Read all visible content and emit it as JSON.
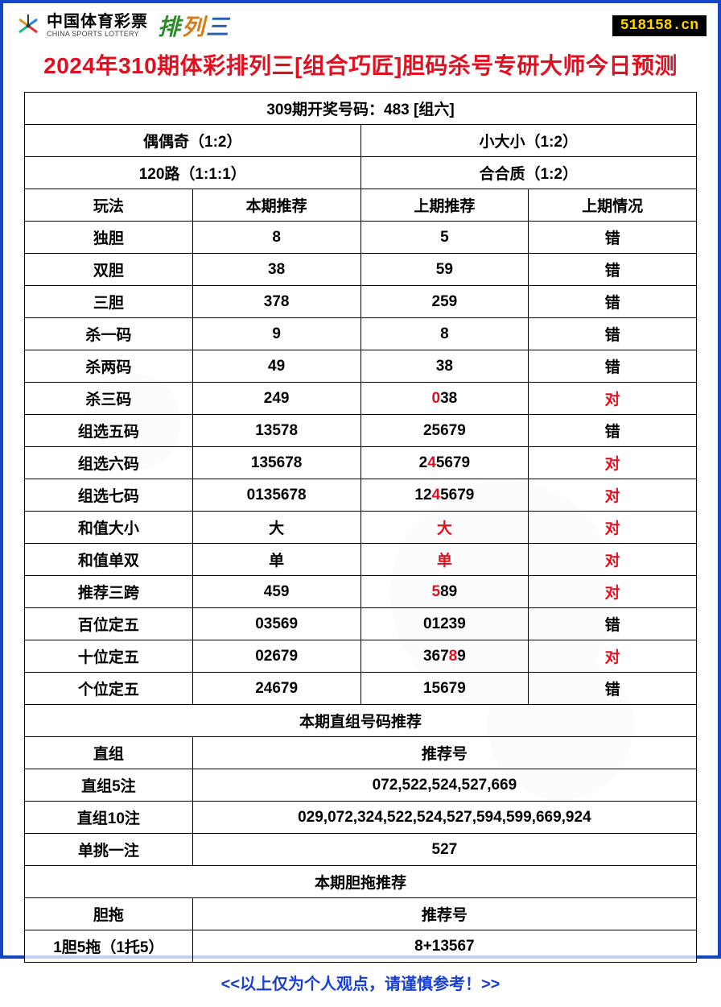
{
  "header": {
    "logo_cn": "中国体育彩票",
    "logo_en": "CHINA SPORTS LOTTERY",
    "pailie": [
      "排",
      "列",
      "三"
    ],
    "watermark": "518158.cn"
  },
  "title": "2024年310期体彩排列三[组合巧匠]胆码杀号专研大师今日预测",
  "top_header": "309期开奖号码：483 [组六]",
  "pair_rows": [
    {
      "left": "偶偶奇（1:2）",
      "right": "小大小（1:2）"
    },
    {
      "left": "120路（1:1:1）",
      "right": "合合质（1:2）"
    }
  ],
  "col_headers": {
    "c1": "玩法",
    "c2": "本期推荐",
    "c3": "上期推荐",
    "c4": "上期情况"
  },
  "rows": [
    {
      "name": "独胆",
      "cur": "8",
      "prev": "5",
      "status": "错",
      "status_red": false,
      "hl": []
    },
    {
      "name": "双胆",
      "cur": "38",
      "prev": "59",
      "status": "错",
      "status_red": false,
      "hl": []
    },
    {
      "name": "三胆",
      "cur": "378",
      "prev": "259",
      "status": "错",
      "status_red": false,
      "hl": []
    },
    {
      "name": "杀一码",
      "cur": "9",
      "prev": "8",
      "status": "错",
      "status_red": false,
      "hl": []
    },
    {
      "name": "杀两码",
      "cur": "49",
      "prev": "38",
      "status": "错",
      "status_red": false,
      "hl": []
    },
    {
      "name": "杀三码",
      "cur": "249",
      "prev": "038",
      "status": "对",
      "status_red": true,
      "hl": [
        0
      ]
    },
    {
      "name": "组选五码",
      "cur": "13578",
      "prev": "25679",
      "status": "错",
      "status_red": false,
      "hl": []
    },
    {
      "name": "组选六码",
      "cur": "135678",
      "prev": "245679",
      "status": "对",
      "status_red": true,
      "hl": [
        1
      ]
    },
    {
      "name": "组选七码",
      "cur": "0135678",
      "prev": "1245679",
      "status": "对",
      "status_red": true,
      "hl": [
        2
      ]
    },
    {
      "name": "和值大小",
      "cur": "大",
      "prev": "大",
      "status": "对",
      "status_red": true,
      "hl": [
        0
      ]
    },
    {
      "name": "和值单双",
      "cur": "单",
      "prev": "单",
      "status": "对",
      "status_red": true,
      "hl": [
        0
      ]
    },
    {
      "name": "推荐三跨",
      "cur": "459",
      "prev": "589",
      "status": "对",
      "status_red": true,
      "hl": [
        0
      ]
    },
    {
      "name": "百位定五",
      "cur": "03569",
      "prev": "01239",
      "status": "错",
      "status_red": false,
      "hl": []
    },
    {
      "name": "十位定五",
      "cur": "02679",
      "prev": "36789",
      "status": "对",
      "status_red": true,
      "hl": [
        3
      ]
    },
    {
      "name": "个位定五",
      "cur": "24679",
      "prev": "15679",
      "status": "错",
      "status_red": false,
      "hl": []
    }
  ],
  "section2_header": "本期直组号码推荐",
  "section2_cols": {
    "c1": "直组",
    "c2": "推荐号"
  },
  "section2_rows": [
    {
      "name": "直组5注",
      "val": "072,522,524,527,669"
    },
    {
      "name": "直组10注",
      "val": "029,072,324,522,524,527,594,599,669,924"
    },
    {
      "name": "单挑一注",
      "val": "527"
    }
  ],
  "section3_header": "本期胆拖推荐",
  "section3_cols": {
    "c1": "胆拖",
    "c2": "推荐号"
  },
  "section3_rows": [
    {
      "name": "1胆5拖（1托5）",
      "val": "8+13567"
    }
  ],
  "footer": "<<以上仅为个人观点，请谨慎参考！>>"
}
